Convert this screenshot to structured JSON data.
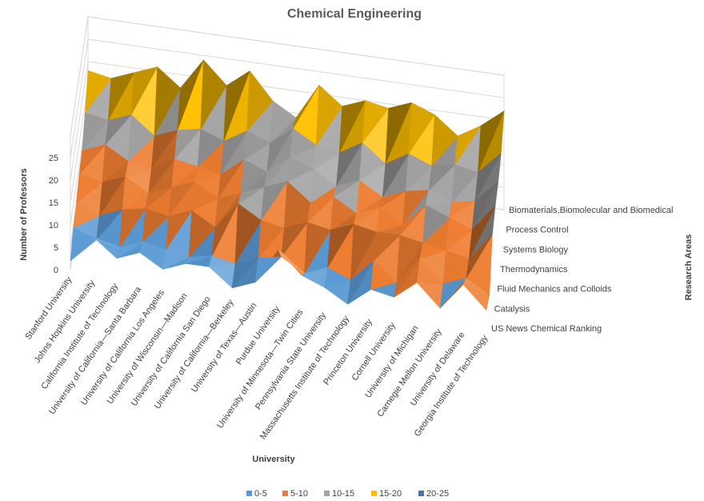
{
  "chart_data": {
    "type": "surface",
    "title": "Chemical Engineering",
    "xlabel": "University",
    "ylabel": "Number of Professors",
    "zlabel": "Research Areas",
    "zlim": [
      0,
      25
    ],
    "z_ticks": [
      "0",
      "5",
      "10",
      "15",
      "20",
      "25"
    ],
    "grid": true,
    "legend_position": "bottom",
    "categories": [
      "Stanford University",
      "Johns Hopkins University",
      "California Institute of Technology",
      "University of California—Santa Barbara",
      "University of California Los Angeles",
      "University of Wisconsin—Madison",
      "University of California San Diego",
      "University of California—Berkeley",
      "University of Texas—Austin",
      "Purdue University",
      "University of Minnesota—Twin Cities",
      "Pennsylvania State University",
      "Massachusetts Institute of Technology",
      "Princeton University",
      "Cornell University",
      "University of Michigan",
      "Carnegie Mellon University",
      "University of Delaware",
      "Georgia Institute of Technology"
    ],
    "series": [
      {
        "name": "US News Chemical Ranking",
        "values": [
          2,
          8,
          4,
          6,
          3,
          5,
          5,
          1,
          3,
          11,
          6,
          4,
          1,
          5,
          4,
          8,
          3,
          9,
          4
        ]
      },
      {
        "name": "Catalysis",
        "values": [
          5,
          3,
          2,
          4,
          3,
          2,
          3,
          2,
          4,
          5,
          2,
          4,
          2,
          7,
          3,
          9,
          4,
          6,
          3
        ]
      },
      {
        "name": "Fluid Mechanics and Colloids",
        "values": [
          6,
          4,
          6,
          7,
          6,
          8,
          5,
          11,
          8,
          7,
          9,
          8,
          10,
          9,
          9,
          8,
          7,
          6,
          12
        ]
      },
      {
        "name": "Thermodynamics",
        "values": [
          8,
          7,
          9,
          6,
          8,
          10,
          7,
          9,
          11,
          13,
          9,
          11,
          8,
          10,
          7,
          12,
          10,
          8,
          14
        ]
      },
      {
        "name": "Systems Biology",
        "values": [
          9,
          11,
          8,
          7,
          10,
          9,
          8,
          12,
          10,
          14,
          12,
          9,
          11,
          8,
          10,
          11,
          9,
          10,
          15
        ]
      },
      {
        "name": "Process Control",
        "values": [
          13,
          12,
          14,
          10,
          12,
          13,
          11,
          14,
          12,
          16,
          13,
          12,
          15,
          11,
          14,
          12,
          13,
          12,
          17
        ]
      },
      {
        "name": "Biomaterials,Biomolecular and Biomedical",
        "values": [
          18,
          17,
          19,
          21,
          17,
          24,
          19,
          23,
          17,
          14,
          22,
          18,
          20,
          19,
          21,
          19,
          15,
          18,
          22
        ]
      }
    ],
    "legend": [
      {
        "label": "0-5",
        "color": "#5B9BD5"
      },
      {
        "label": "5-10",
        "color": "#ED7D31"
      },
      {
        "label": "10-15",
        "color": "#A5A5A5"
      },
      {
        "label": "15-20",
        "color": "#FFC000"
      },
      {
        "label": "20-25",
        "color": "#4472C4"
      }
    ]
  }
}
